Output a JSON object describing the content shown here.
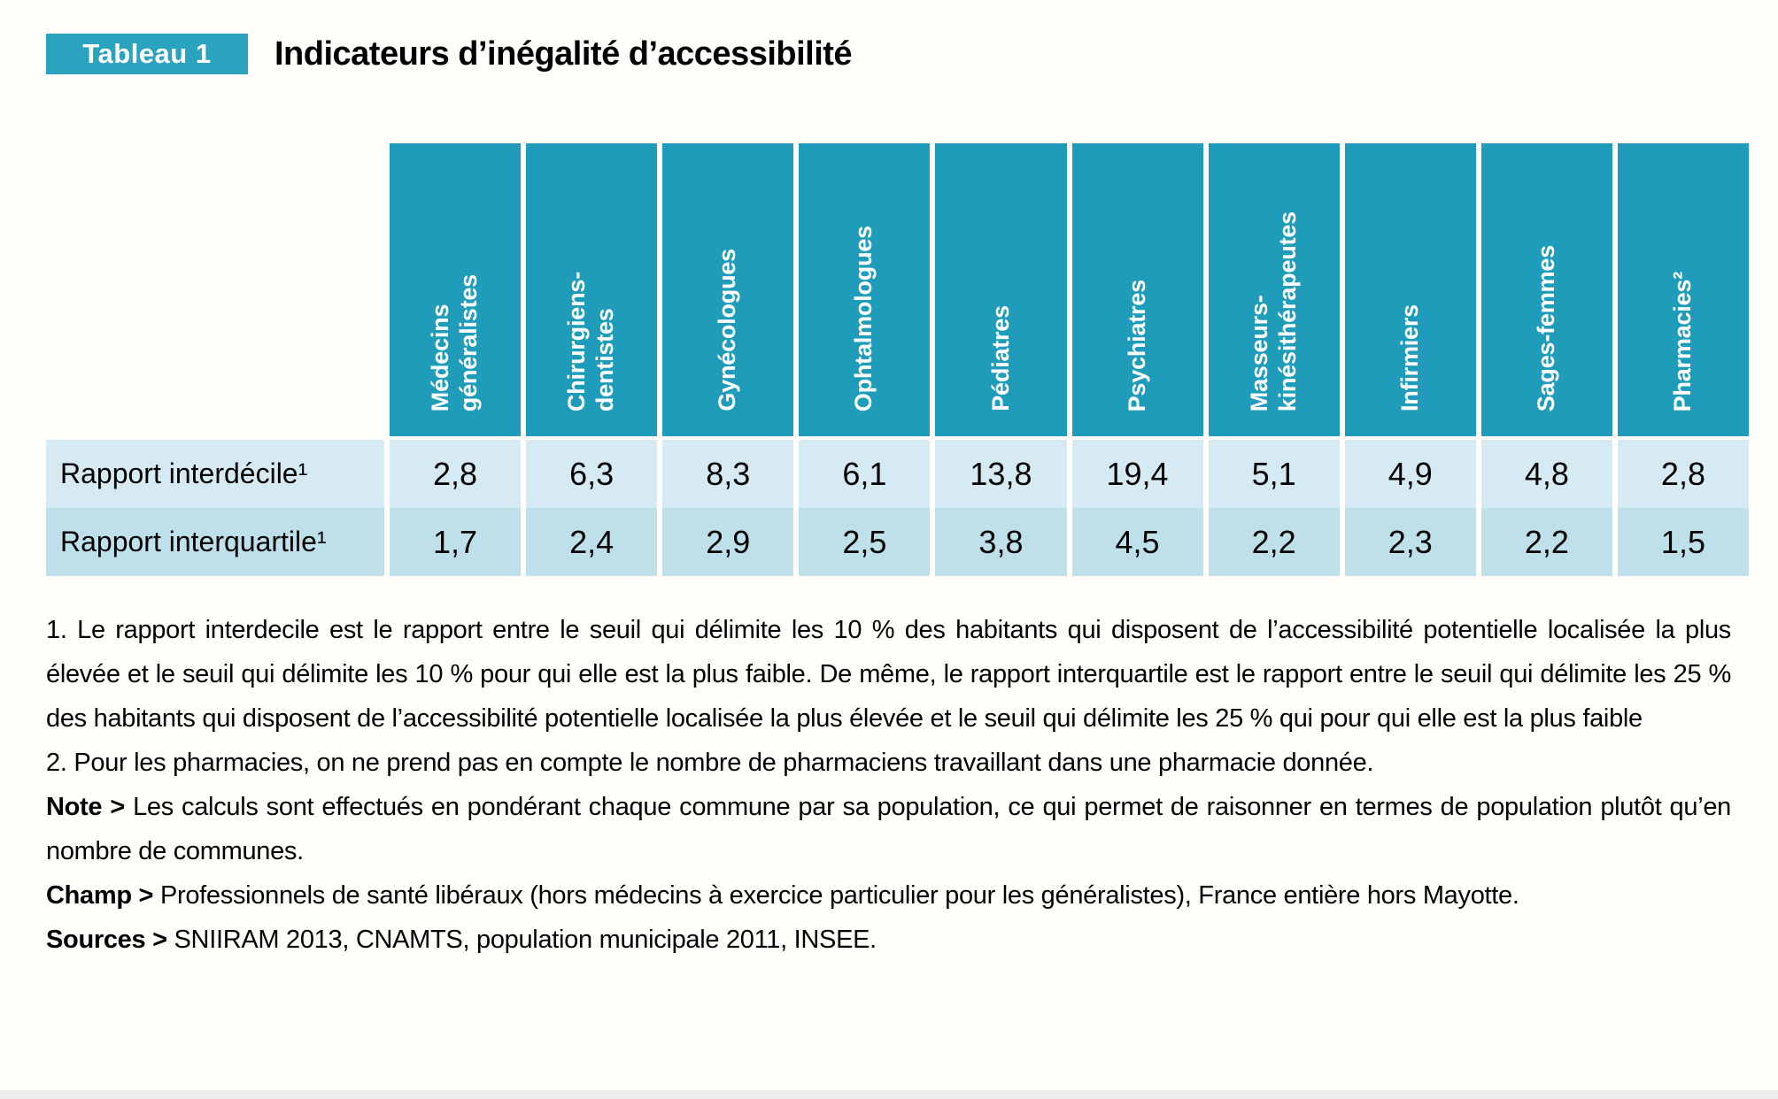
{
  "header": {
    "tag": "Tableau 1",
    "title": "Indicateurs d’inégalité d’accessibilité"
  },
  "table": {
    "columns": [
      "Médecins\ngénéralistes",
      "Chirurgiens-\ndentistes",
      "Gynécologues",
      "Ophtalmologues",
      "Pédiatres",
      "Psychiatres",
      "Masseurs-\nkinésithérapeutes",
      "Infirmiers",
      "Sages-femmes",
      "Pharmacies²"
    ],
    "rows": [
      {
        "label": "Rapport interdécile¹",
        "values": [
          "2,8",
          "6,3",
          "8,3",
          "6,1",
          "13,8",
          "19,4",
          "5,1",
          "4,9",
          "4,8",
          "2,8"
        ]
      },
      {
        "label": "Rapport interquartile¹",
        "values": [
          "1,7",
          "2,4",
          "2,9",
          "2,5",
          "3,8",
          "4,5",
          "2,2",
          "2,3",
          "2,2",
          "1,5"
        ]
      }
    ]
  },
  "notes": [
    {
      "lead": "",
      "text": "1. Le rapport interdecile est le rapport entre le seuil qui délimite les 10 % des habitants qui disposent de l’accessibilité potentielle localisée la plus élevée et le seuil qui délimite les 10 % pour qui elle est la plus faible. De même, le rapport interquartile est le rapport entre le seuil qui délimite les 25 % des habitants qui disposent de l’accessibilité potentielle localisée la plus élevée et le seuil qui délimite les 25 % qui pour qui elle est la plus faible"
    },
    {
      "lead": "",
      "text": "2. Pour les pharmacies, on ne prend pas en compte le nombre de pharmaciens travaillant dans une pharmacie donnée."
    },
    {
      "lead": "Note >",
      "text": " Les calculs sont effectués en pondérant chaque commune par sa population, ce qui permet de raisonner en termes de population plutôt qu’en nombre de communes."
    },
    {
      "lead": "Champ >",
      "text": " Professionnels de santé libéraux (hors médecins à exercice particulier pour les généralistes), France entière hors Mayotte."
    },
    {
      "lead": "Sources >",
      "text": " SNIIRAM 2013, CNAMTS, population municipale 2011, INSEE."
    }
  ],
  "colors": {
    "header_teal": "#1f9cba",
    "tag_teal": "#2aa3bf",
    "row_light": "#d5eaf2",
    "row_dark": "#bee0ea"
  }
}
